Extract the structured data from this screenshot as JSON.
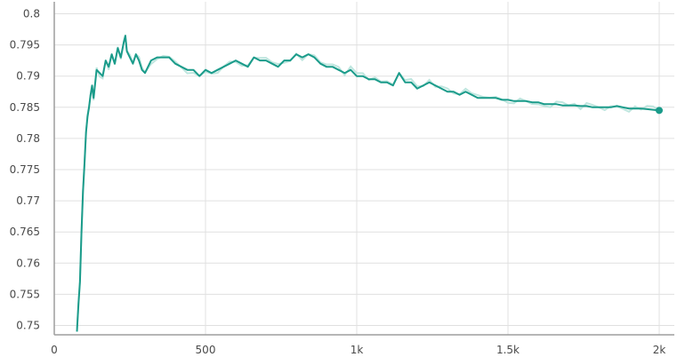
{
  "chart_data": {
    "type": "line",
    "title": "",
    "xlabel": "",
    "ylabel": "",
    "xlim": [
      0,
      2050
    ],
    "ylim": [
      0.7485,
      0.8015
    ],
    "grid": true,
    "x_ticks": [
      {
        "value": 0,
        "label": "0"
      },
      {
        "value": 500,
        "label": "500"
      },
      {
        "value": 1000,
        "label": "1k"
      },
      {
        "value": 1500,
        "label": "1.5k"
      },
      {
        "value": 2000,
        "label": "2k"
      }
    ],
    "y_ticks": [
      {
        "value": 0.75,
        "label": "0.75"
      },
      {
        "value": 0.755,
        "label": "0.755"
      },
      {
        "value": 0.76,
        "label": "0.76"
      },
      {
        "value": 0.765,
        "label": "0.765"
      },
      {
        "value": 0.77,
        "label": "0.77"
      },
      {
        "value": 0.775,
        "label": "0.775"
      },
      {
        "value": 0.78,
        "label": "0.78"
      },
      {
        "value": 0.785,
        "label": "0.785"
      },
      {
        "value": 0.79,
        "label": "0.79"
      },
      {
        "value": 0.795,
        "label": "0.795"
      },
      {
        "value": 0.8,
        "label": "0.8"
      }
    ],
    "series": [
      {
        "color": "#1a9b8a",
        "raw_color": "#bfe6df",
        "x": [
          75,
          80,
          85,
          90,
          95,
          100,
          105,
          110,
          115,
          120,
          125,
          130,
          140,
          150,
          160,
          170,
          180,
          190,
          200,
          210,
          220,
          230,
          235,
          240,
          250,
          260,
          270,
          280,
          290,
          300,
          320,
          340,
          360,
          380,
          400,
          420,
          440,
          460,
          480,
          500,
          520,
          540,
          560,
          580,
          600,
          620,
          640,
          660,
          680,
          700,
          720,
          740,
          760,
          780,
          800,
          820,
          840,
          860,
          880,
          900,
          920,
          940,
          960,
          980,
          1000,
          1020,
          1040,
          1060,
          1080,
          1100,
          1120,
          1140,
          1160,
          1180,
          1200,
          1220,
          1240,
          1260,
          1280,
          1300,
          1320,
          1340,
          1360,
          1380,
          1400,
          1420,
          1440,
          1460,
          1480,
          1500,
          1520,
          1540,
          1560,
          1580,
          1600,
          1620,
          1640,
          1660,
          1680,
          1700,
          1720,
          1740,
          1760,
          1780,
          1800,
          1820,
          1840,
          1860,
          1880,
          1900,
          1920,
          1940,
          1960,
          1980,
          2000
        ],
        "values": [
          0.749,
          0.7535,
          0.757,
          0.765,
          0.7715,
          0.776,
          0.781,
          0.7835,
          0.785,
          0.787,
          0.7885,
          0.7865,
          0.791,
          0.7905,
          0.79,
          0.7925,
          0.7915,
          0.7935,
          0.792,
          0.7945,
          0.793,
          0.7955,
          0.7965,
          0.794,
          0.793,
          0.792,
          0.7935,
          0.7925,
          0.791,
          0.7905,
          0.7925,
          0.793,
          0.793,
          0.793,
          0.792,
          0.7915,
          0.791,
          0.791,
          0.79,
          0.791,
          0.7905,
          0.791,
          0.7915,
          0.792,
          0.7925,
          0.792,
          0.7915,
          0.793,
          0.7925,
          0.7925,
          0.792,
          0.7915,
          0.7925,
          0.7925,
          0.7935,
          0.793,
          0.7935,
          0.793,
          0.792,
          0.7915,
          0.7915,
          0.791,
          0.7905,
          0.791,
          0.79,
          0.79,
          0.7895,
          0.7895,
          0.789,
          0.789,
          0.7885,
          0.7905,
          0.789,
          0.789,
          0.788,
          0.7885,
          0.789,
          0.7885,
          0.788,
          0.7875,
          0.7875,
          0.787,
          0.7875,
          0.787,
          0.7865,
          0.7865,
          0.7865,
          0.7865,
          0.7862,
          0.7862,
          0.786,
          0.786,
          0.786,
          0.7858,
          0.7858,
          0.7855,
          0.7855,
          0.7855,
          0.7853,
          0.7853,
          0.7853,
          0.7852,
          0.7852,
          0.785,
          0.785,
          0.785,
          0.785,
          0.7852,
          0.785,
          0.7848,
          0.7848,
          0.7848,
          0.7847,
          0.7846,
          0.7845
        ]
      }
    ]
  }
}
